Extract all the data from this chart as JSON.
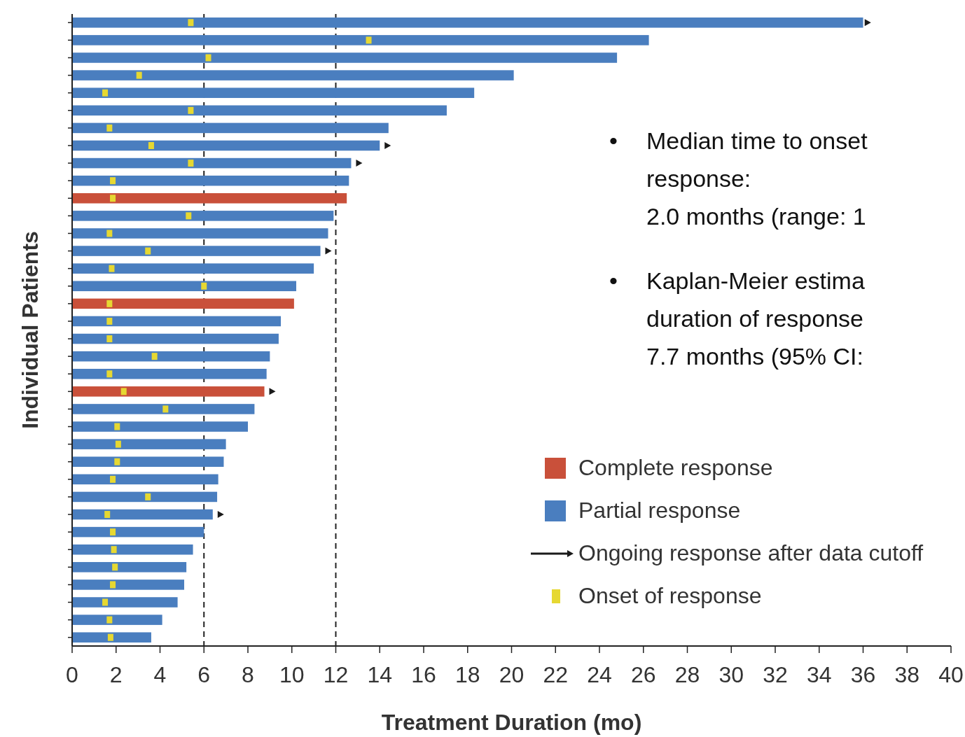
{
  "chart_data": {
    "type": "bar",
    "orientation": "horizontal",
    "stacked": true,
    "xlabel": "Treatment Duration (mo)",
    "ylabel": "Individual Patients",
    "categories": [
      null,
      null,
      null,
      null,
      null,
      null,
      null,
      null,
      null,
      null,
      null,
      null,
      null,
      null,
      null,
      null,
      null,
      null,
      null,
      null,
      null,
      null,
      null,
      null,
      null,
      null,
      null,
      null,
      null,
      null,
      null,
      null,
      null,
      null,
      null,
      null
    ],
    "series": [
      {
        "name": "Complete response",
        "color": "#c9503a",
        "values": [
          null,
          null,
          null,
          null,
          null,
          null,
          null,
          null,
          null,
          null,
          12.5,
          null,
          null,
          null,
          null,
          null,
          10.1,
          null,
          null,
          null,
          null,
          8.75,
          null,
          null,
          null,
          null,
          null,
          null,
          null,
          null,
          null,
          null,
          null,
          null,
          null,
          null
        ]
      },
      {
        "name": "Partial response",
        "color": "#4a7ebf",
        "values": [
          36.0,
          26.25,
          24.8,
          20.1,
          18.3,
          17.05,
          14.4,
          14.0,
          12.7,
          12.6,
          null,
          11.9,
          11.65,
          11.3,
          11.0,
          10.2,
          null,
          9.5,
          9.4,
          9.0,
          8.85,
          null,
          8.3,
          8.0,
          7.0,
          6.9,
          6.65,
          6.6,
          6.4,
          6.0,
          5.5,
          5.2,
          5.1,
          4.8,
          4.1,
          3.6
        ]
      },
      {
        "name": "Ongoing response after data cutoff",
        "type": "scatter",
        "marker": "triangle",
        "color": "#1a1a1a",
        "values": [
          36.2,
          null,
          null,
          null,
          null,
          null,
          null,
          14.35,
          13.05,
          null,
          null,
          null,
          null,
          11.65,
          null,
          null,
          null,
          null,
          null,
          null,
          null,
          9.1,
          null,
          null,
          null,
          null,
          null,
          null,
          6.75,
          null,
          null,
          null,
          null,
          null,
          null,
          null
        ]
      },
      {
        "name": "Onset of response",
        "type": "scatter",
        "marker": "square",
        "color": "#e6d832",
        "values": [
          5.4,
          13.5,
          6.2,
          3.05,
          1.5,
          5.4,
          1.7,
          3.6,
          5.4,
          1.85,
          1.85,
          5.3,
          1.7,
          3.45,
          1.8,
          6.0,
          1.7,
          1.7,
          1.7,
          3.75,
          1.7,
          2.35,
          4.25,
          2.05,
          2.1,
          2.05,
          1.85,
          3.45,
          1.6,
          1.85,
          1.9,
          1.95,
          1.85,
          1.5,
          1.7,
          1.75
        ]
      }
    ],
    "xlim": [
      0,
      40
    ],
    "xticks": [
      0,
      2,
      4,
      6,
      8,
      10,
      12,
      14,
      16,
      18,
      20,
      22,
      24,
      26,
      28,
      30,
      32,
      34,
      36,
      38,
      40
    ],
    "ref_lines": [
      {
        "axis": "x",
        "value": 6,
        "line_style": "dashed",
        "color": "#222222"
      },
      {
        "axis": "x",
        "value": 12,
        "line_style": "dashed",
        "color": "#222222"
      }
    ],
    "annotations": [
      "•\tMedian time to onset\nresponse:\n2.0 months (range: 1",
      "•\tKaplan-Meier estima\nduration of response\n7.7 months (95% CI:"
    ],
    "legend": "bottom right",
    "grid": false
  }
}
